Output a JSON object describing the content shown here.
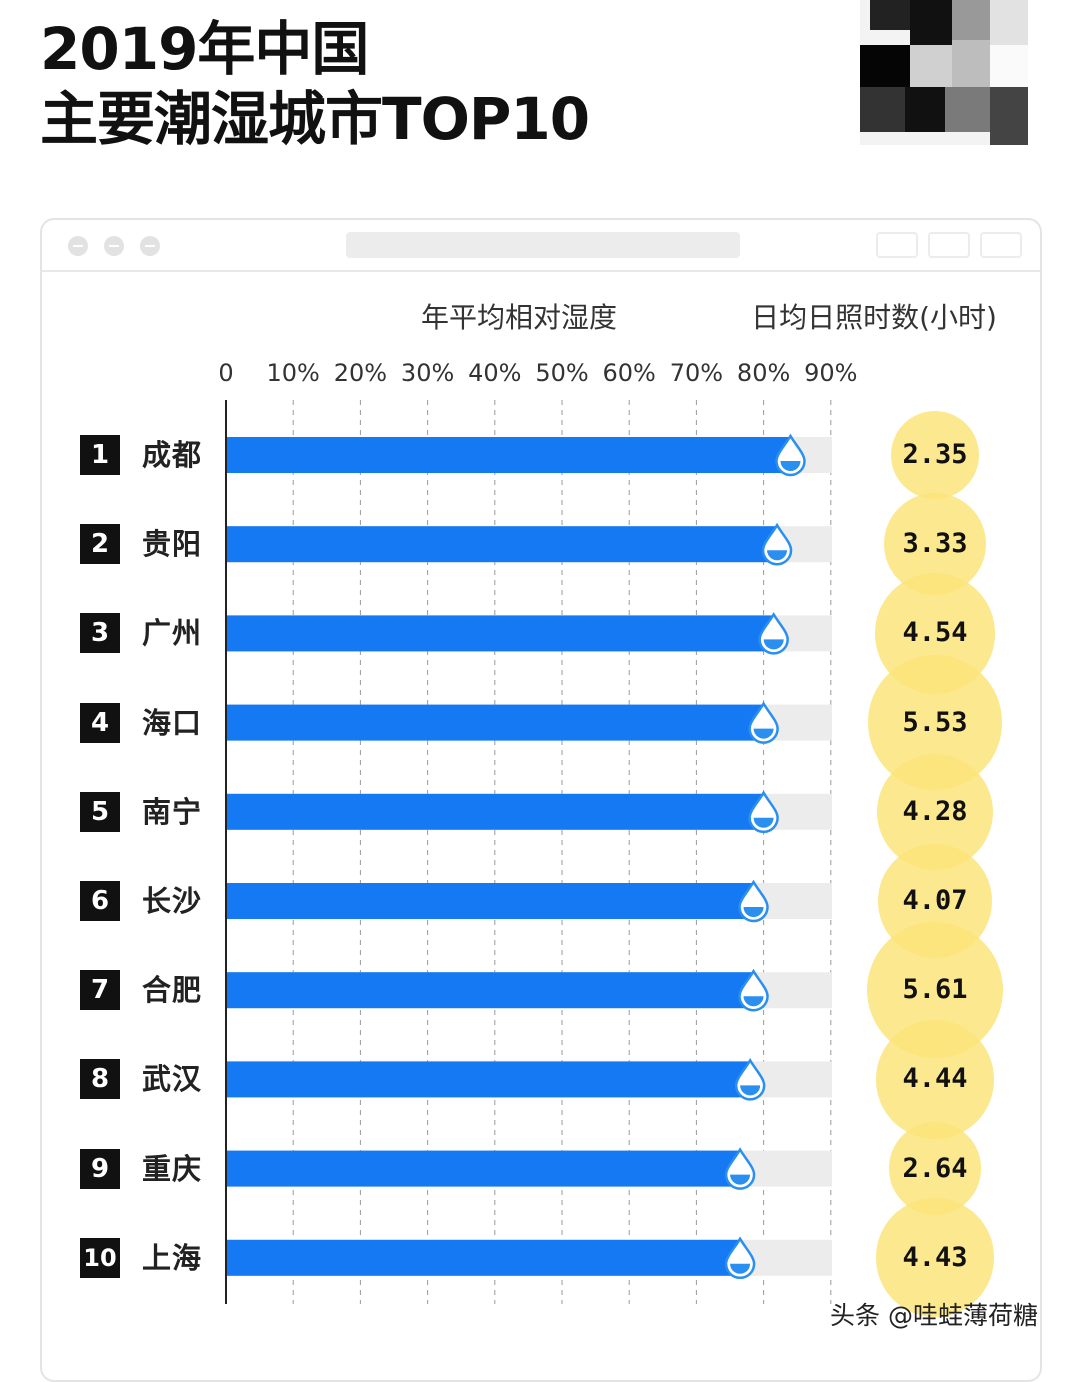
{
  "title": {
    "line1": "2019年中国",
    "line2": "主要潮湿城市TOP10"
  },
  "credit": "头条 @哇蛙薄荷糖",
  "chart_data": {
    "type": "bar",
    "orientation": "horizontal",
    "xlabel": "年平均相对湿度",
    "secondary_label": "日均日照时数(小时)",
    "x_ticks": [
      "0",
      "10%",
      "20%",
      "30%",
      "40%",
      "50%",
      "60%",
      "70%",
      "80%",
      "90%"
    ],
    "xlim": [
      0,
      90
    ],
    "grid": true,
    "colors": {
      "bar": "#1479f2",
      "track": "#ececec",
      "drop": "#2b8ff0",
      "sun": "#fbe47a"
    },
    "ranks": [
      "1",
      "2",
      "3",
      "4",
      "5",
      "6",
      "7",
      "8",
      "9",
      "10"
    ],
    "categories": [
      "成都",
      "贵阳",
      "广州",
      "海口",
      "南宁",
      "长沙",
      "合肥",
      "武汉",
      "重庆",
      "上海"
    ],
    "values": [
      84,
      82,
      81.5,
      80,
      80,
      78.5,
      78.5,
      78,
      76.5,
      76.5
    ],
    "sunshine": [
      "2.35",
      "3.33",
      "4.54",
      "5.53",
      "4.28",
      "4.07",
      "5.61",
      "4.44",
      "2.64",
      "4.43"
    ]
  }
}
